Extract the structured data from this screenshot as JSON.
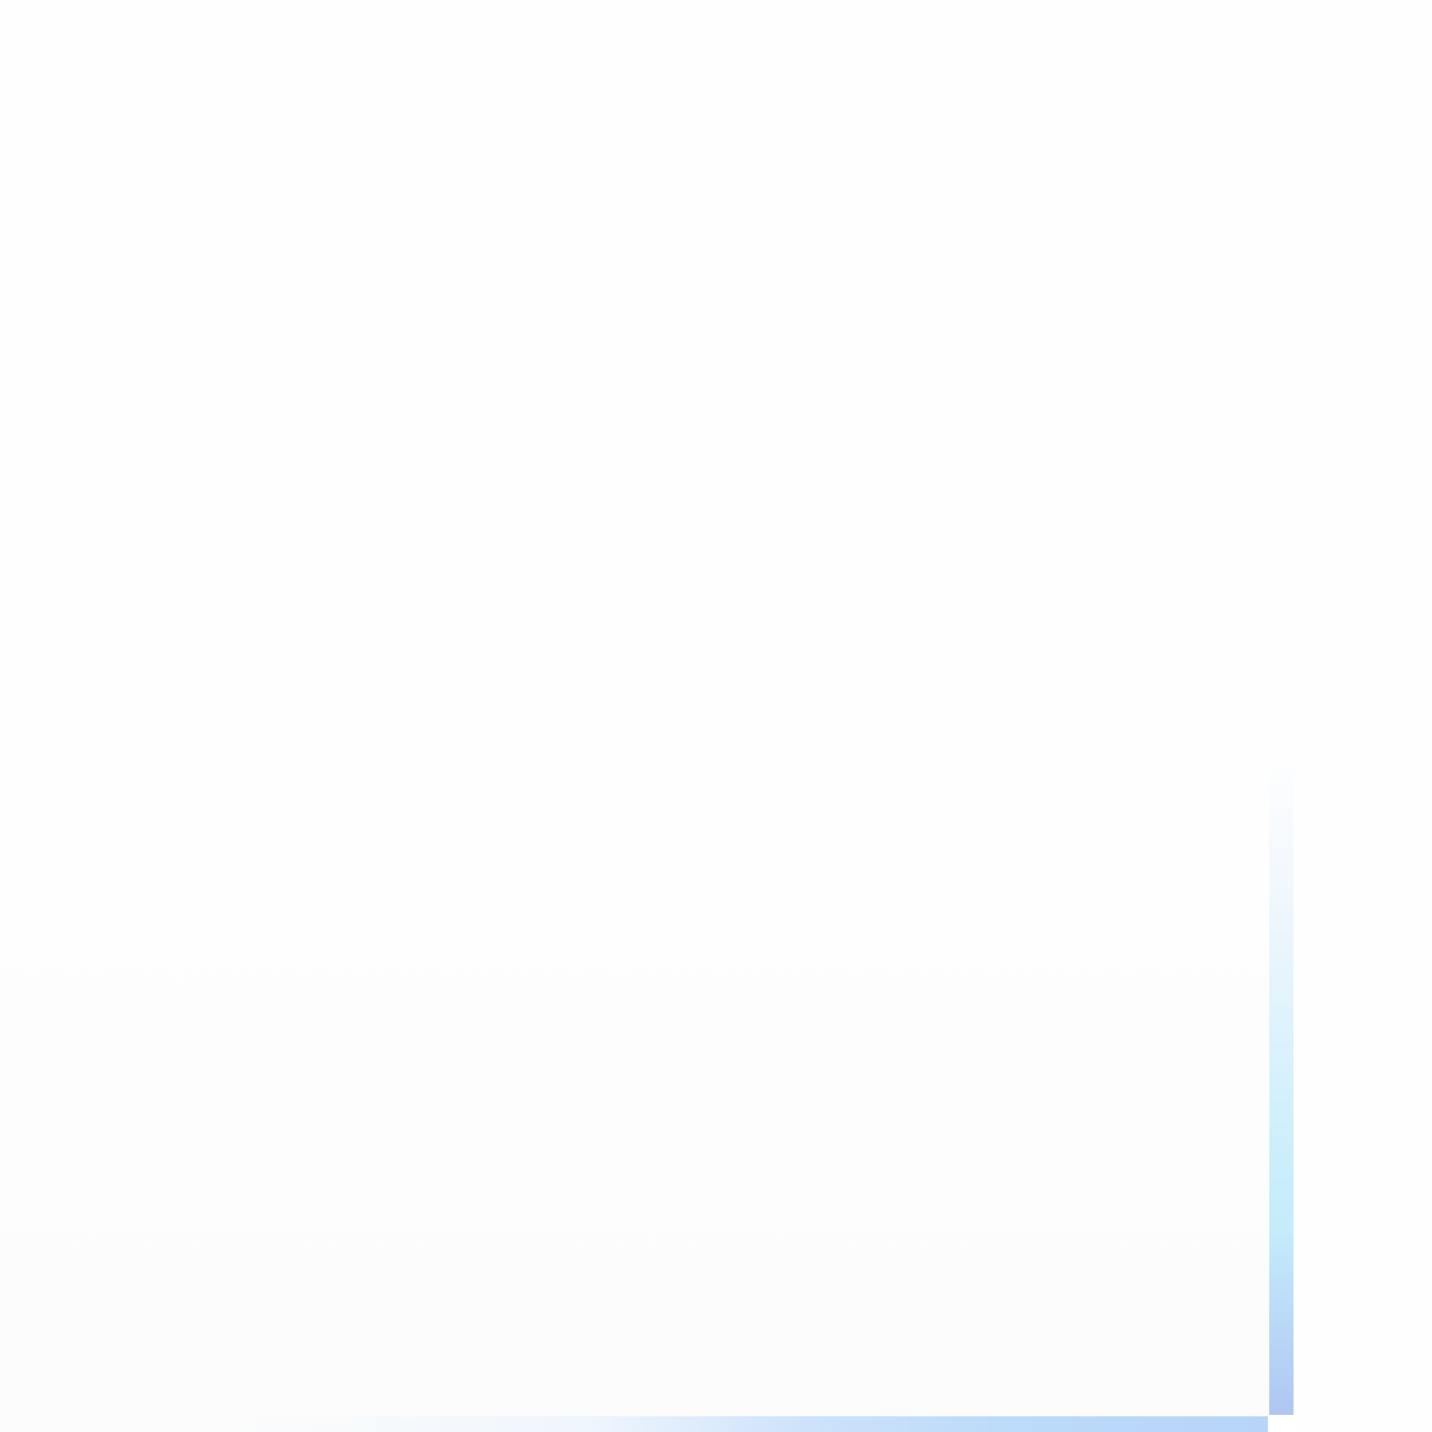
{
  "colors": {
    "background": "#fefefe",
    "panel_background": "#fcfcfc",
    "scrollbar_vertical_end": "#afc6f2",
    "scrollbar_vertical_mid": "#c4ecfb",
    "scrollbar_horizontal_end": "#b8d5f9"
  },
  "scrollbars": {
    "vertical": "scrollbar-vertical",
    "horizontal": "scrollbar-horizontal"
  }
}
